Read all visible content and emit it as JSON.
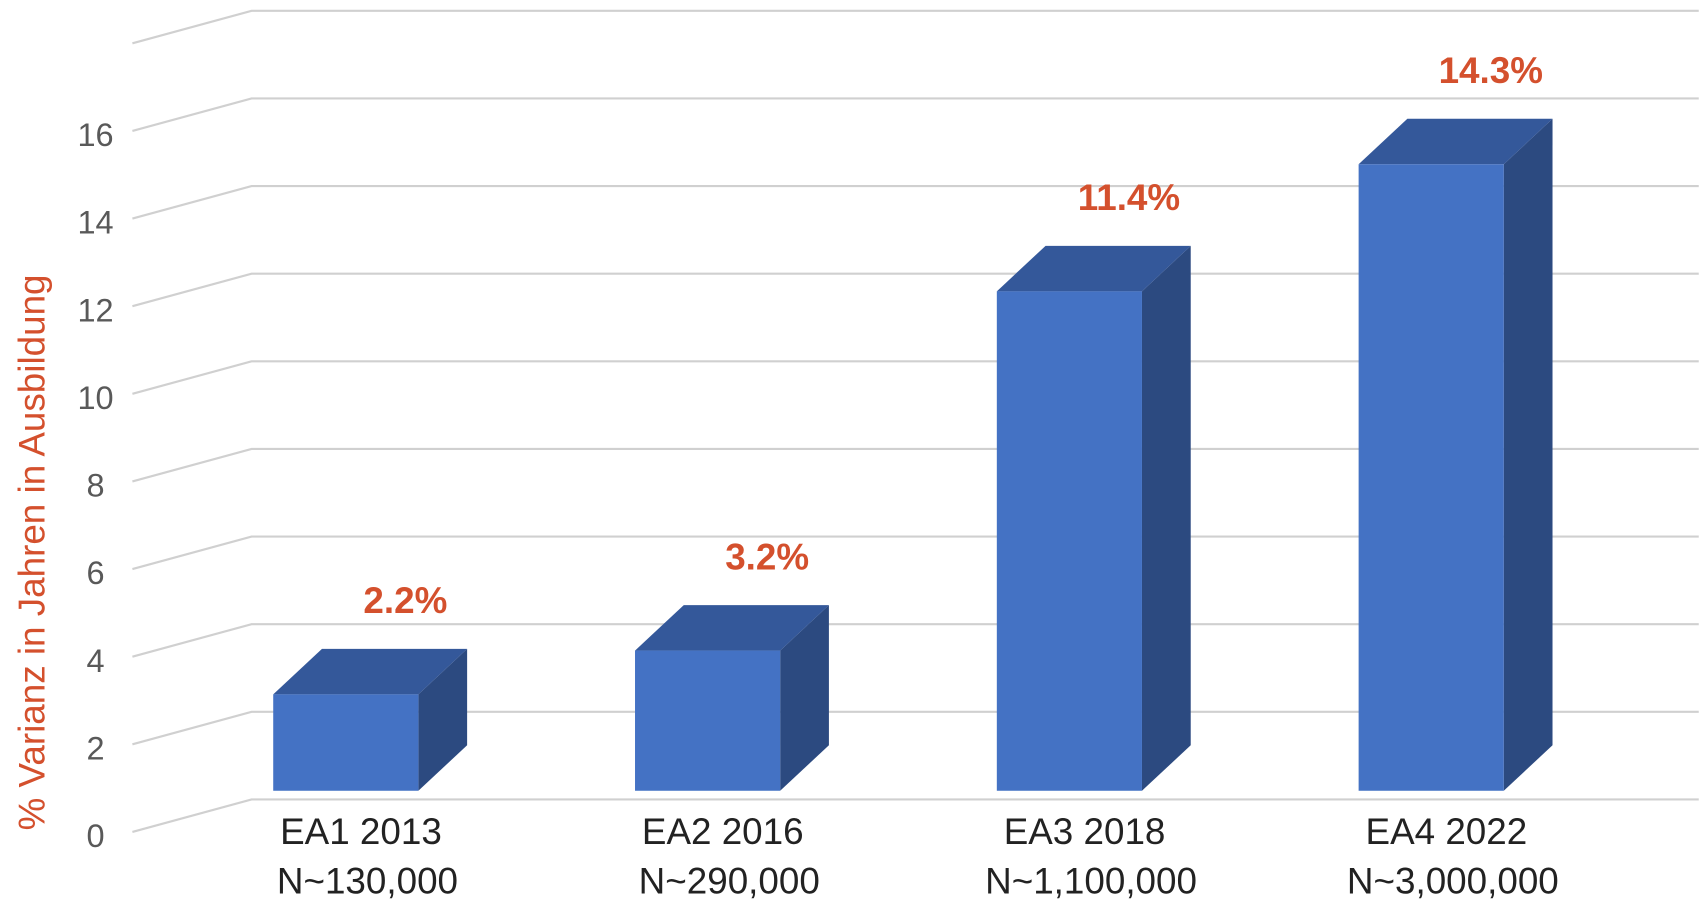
{
  "chart_data": {
    "type": "bar3d",
    "y_axis_label": "% Varianz in Jahren in Ausbildung",
    "categories": [
      "EA1 2013",
      "EA2 2016",
      "EA3 2018",
      "EA4 2022"
    ],
    "category_sublabels": [
      "N~130,000",
      "N~290,000",
      "N~1,100,000",
      "N~3,000,000"
    ],
    "values": [
      2.2,
      3.2,
      11.4,
      14.3
    ],
    "value_labels": [
      "2.2%",
      "3.2%",
      "11.4%",
      "14.3%"
    ],
    "color": "#4472c4",
    "side_color": "#2c4a80",
    "top_color": "#34589a",
    "label_color": "#d4502d",
    "ylim": [
      0,
      18
    ],
    "yticks": [
      0,
      2,
      4,
      6,
      8,
      10,
      12,
      14,
      16
    ],
    "grid": true
  }
}
